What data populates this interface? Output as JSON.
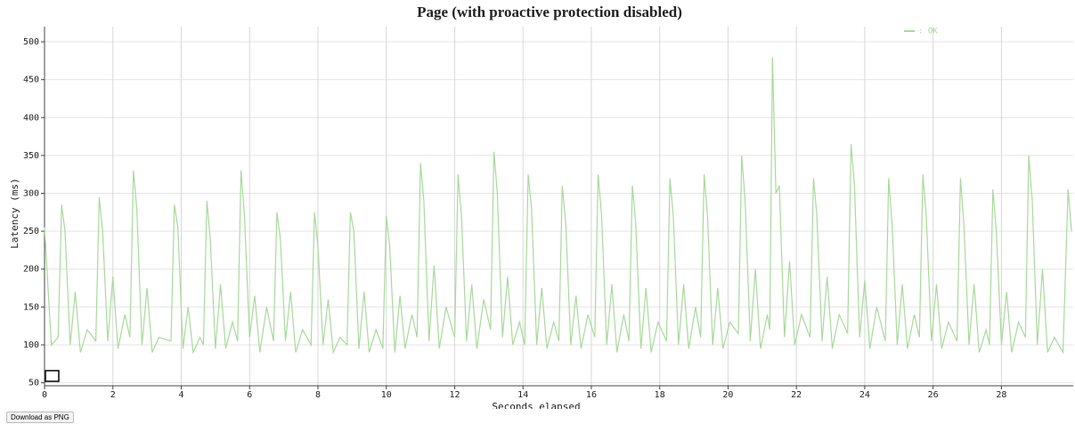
{
  "chart_data": {
    "type": "line",
    "title": "Page (with proactive protection disabled)",
    "x_label": "Seconds elapsed",
    "y_label": "Latency (ms)",
    "xlim": [
      0,
      30.1
    ],
    "xticks": [
      0,
      2,
      4,
      6,
      8,
      10,
      12,
      14,
      16,
      18,
      20,
      22,
      24,
      26,
      28
    ],
    "ylim": [
      46,
      520
    ],
    "yticks": [
      50,
      100,
      150,
      200,
      250,
      300,
      350,
      400,
      450,
      500
    ],
    "grid": true,
    "legend": "top-right",
    "x": [
      0,
      0.2,
      0.4,
      0.5,
      0.6,
      0.75,
      0.9,
      1.05,
      1.25,
      1.5,
      1.6,
      1.7,
      1.85,
      2.0,
      2.15,
      2.35,
      2.5,
      2.6,
      2.7,
      2.85,
      3.0,
      3.15,
      3.35,
      3.7,
      3.8,
      3.9,
      4.05,
      4.2,
      4.35,
      4.55,
      4.65,
      4.75,
      4.85,
      5.0,
      5.15,
      5.3,
      5.5,
      5.65,
      5.75,
      5.85,
      6.0,
      6.15,
      6.3,
      6.5,
      6.7,
      6.8,
      6.9,
      7.05,
      7.2,
      7.35,
      7.55,
      7.8,
      7.9,
      8.0,
      8.15,
      8.3,
      8.45,
      8.65,
      8.85,
      8.95,
      9.05,
      9.2,
      9.35,
      9.5,
      9.7,
      9.9,
      10.0,
      10.1,
      10.25,
      10.4,
      10.55,
      10.75,
      10.9,
      11.0,
      11.1,
      11.25,
      11.4,
      11.55,
      11.75,
      12.0,
      12.1,
      12.2,
      12.35,
      12.5,
      12.65,
      12.85,
      13.05,
      13.15,
      13.25,
      13.4,
      13.55,
      13.7,
      13.9,
      14.05,
      14.15,
      14.25,
      14.4,
      14.55,
      14.7,
      14.9,
      15.05,
      15.15,
      15.25,
      15.4,
      15.55,
      15.7,
      15.9,
      16.1,
      16.2,
      16.3,
      16.45,
      16.6,
      16.75,
      16.95,
      17.1,
      17.2,
      17.3,
      17.45,
      17.6,
      17.75,
      17.95,
      18.2,
      18.3,
      18.4,
      18.55,
      18.7,
      18.85,
      19.05,
      19.2,
      19.3,
      19.4,
      19.55,
      19.7,
      19.85,
      20.05,
      20.3,
      20.4,
      20.5,
      20.65,
      20.8,
      20.95,
      21.15,
      21.22,
      21.3,
      21.4,
      21.5,
      21.65,
      21.8,
      21.95,
      22.15,
      22.4,
      22.5,
      22.6,
      22.75,
      22.9,
      23.05,
      23.25,
      23.5,
      23.6,
      23.7,
      23.85,
      24.0,
      24.15,
      24.35,
      24.6,
      24.7,
      24.8,
      24.95,
      25.1,
      25.25,
      25.45,
      25.6,
      25.7,
      25.8,
      25.95,
      26.1,
      26.25,
      26.45,
      26.7,
      26.8,
      26.9,
      27.05,
      27.2,
      27.35,
      27.55,
      27.65,
      27.75,
      27.85,
      28.0,
      28.15,
      28.3,
      28.5,
      28.7,
      28.8,
      28.9,
      29.05,
      29.2,
      29.35,
      29.55,
      29.8,
      29.95,
      30.05
    ],
    "series": [
      {
        "name": ": OK",
        "color": "#a9d99c",
        "values": [
          255,
          100,
          110,
          285,
          250,
          100,
          170,
          90,
          120,
          105,
          295,
          250,
          105,
          190,
          95,
          140,
          110,
          330,
          280,
          100,
          175,
          90,
          110,
          105,
          285,
          255,
          95,
          150,
          90,
          110,
          100,
          290,
          240,
          95,
          180,
          95,
          130,
          105,
          330,
          270,
          110,
          165,
          90,
          150,
          105,
          275,
          240,
          105,
          170,
          90,
          120,
          100,
          275,
          230,
          100,
          160,
          90,
          110,
          100,
          275,
          250,
          95,
          170,
          90,
          120,
          95,
          270,
          230,
          90,
          165,
          95,
          140,
          110,
          340,
          290,
          105,
          205,
          95,
          150,
          110,
          325,
          270,
          105,
          180,
          95,
          160,
          120,
          355,
          300,
          110,
          190,
          100,
          130,
          100,
          325,
          280,
          100,
          175,
          95,
          130,
          105,
          310,
          260,
          100,
          165,
          95,
          140,
          110,
          325,
          270,
          100,
          180,
          90,
          140,
          105,
          310,
          260,
          95,
          175,
          90,
          130,
          105,
          320,
          270,
          100,
          180,
          95,
          150,
          110,
          325,
          270,
          100,
          175,
          95,
          130,
          115,
          350,
          290,
          105,
          200,
          95,
          140,
          120,
          480,
          300,
          310,
          110,
          210,
          100,
          140,
          110,
          320,
          270,
          105,
          190,
          95,
          140,
          115,
          365,
          310,
          110,
          185,
          95,
          150,
          105,
          320,
          260,
          100,
          180,
          95,
          140,
          110,
          325,
          270,
          105,
          180,
          95,
          130,
          105,
          320,
          260,
          100,
          180,
          90,
          120,
          100,
          305,
          250,
          100,
          170,
          90,
          130,
          110,
          350,
          290,
          100,
          200,
          90,
          110,
          90,
          305,
          250
        ]
      }
    ]
  },
  "button": "Download as PNG"
}
